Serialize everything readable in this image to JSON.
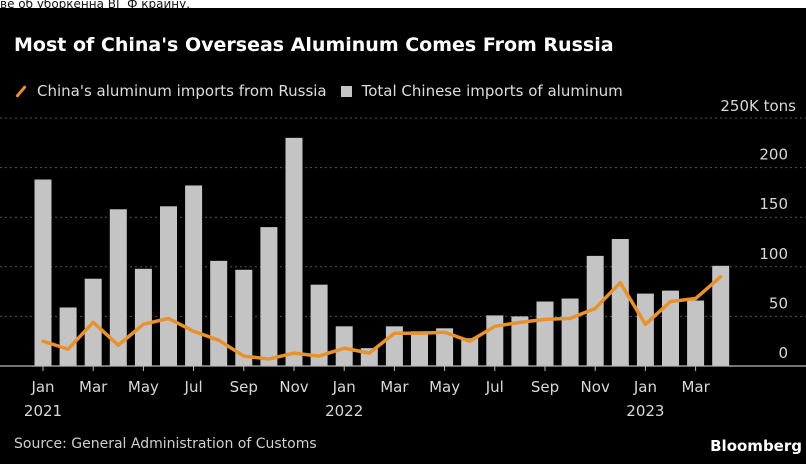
{
  "header_text": "ве об уборкенна ВГ Ф краину.",
  "title": "Most of China's Overseas Aluminum Comes From Russia",
  "legend": {
    "line_label": "China's aluminum imports from Russia",
    "bar_label": "Total Chinese imports of aluminum"
  },
  "source": "Source: General Administration of Customs",
  "brand": "Bloomberg",
  "colors": {
    "background": "#000000",
    "bar": "#c4c4c4",
    "line": "#e8912d",
    "grid": "#555555",
    "text": "#dddddd"
  },
  "chart_data": {
    "type": "bar+line",
    "categories": [
      "Jan 2021",
      "Feb 2021",
      "Mar 2021",
      "Apr 2021",
      "May 2021",
      "Jun 2021",
      "Jul 2021",
      "Aug 2021",
      "Sep 2021",
      "Oct 2021",
      "Nov 2021",
      "Dec 2021",
      "Jan 2022",
      "Feb 2022",
      "Mar 2022",
      "Apr 2022",
      "May 2022",
      "Jun 2022",
      "Jul 2022",
      "Aug 2022",
      "Sep 2022",
      "Oct 2022",
      "Nov 2022",
      "Dec 2022",
      "Jan 2023",
      "Feb 2023",
      "Mar 2023",
      "Apr 2023"
    ],
    "series": [
      {
        "name": "Total Chinese imports of aluminum",
        "type": "bar",
        "values": [
          188,
          59,
          88,
          158,
          98,
          161,
          182,
          106,
          97,
          140,
          230,
          82,
          40,
          18,
          40,
          35,
          38,
          28,
          51,
          50,
          65,
          68,
          111,
          128,
          73,
          76,
          66,
          101
        ]
      },
      {
        "name": "China's aluminum imports from Russia",
        "type": "line",
        "values": [
          25,
          17,
          44,
          21,
          42,
          48,
          35,
          26,
          10,
          7,
          13,
          10,
          18,
          13,
          33,
          33,
          34,
          25,
          40,
          44,
          47,
          48,
          58,
          84,
          42,
          65,
          68,
          90
        ]
      }
    ],
    "y_unit_label": "250K tons",
    "ylim": [
      0,
      250
    ],
    "y_ticks": [
      "200",
      "150",
      "100",
      "50",
      "0"
    ],
    "x_tick_labels": [
      {
        "month": "Jan",
        "year": "2021"
      },
      {
        "month": "Mar",
        "year": ""
      },
      {
        "month": "May",
        "year": ""
      },
      {
        "month": "Jul",
        "year": ""
      },
      {
        "month": "Sep",
        "year": ""
      },
      {
        "month": "Nov",
        "year": ""
      },
      {
        "month": "Jan",
        "year": "2022"
      },
      {
        "month": "Mar",
        "year": ""
      },
      {
        "month": "May",
        "year": ""
      },
      {
        "month": "Jul",
        "year": ""
      },
      {
        "month": "Sep",
        "year": ""
      },
      {
        "month": "Nov",
        "year": ""
      },
      {
        "month": "Jan",
        "year": "2023"
      },
      {
        "month": "Mar",
        "year": ""
      }
    ],
    "grid": true,
    "legend_position": "top-left"
  }
}
